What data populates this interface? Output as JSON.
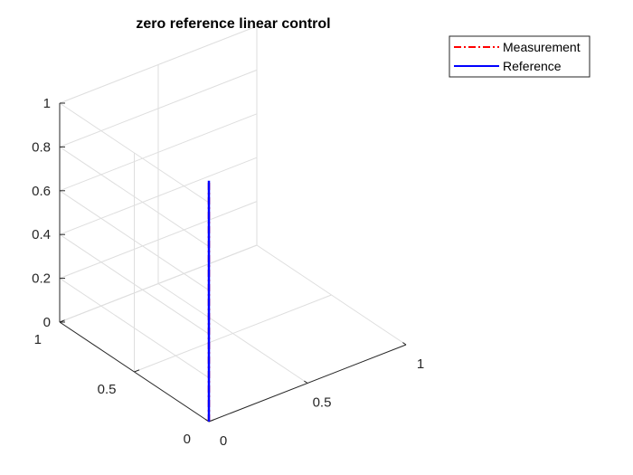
{
  "chart_data": {
    "type": "line",
    "projection": "3d",
    "title": "zero reference linear control",
    "xlabel": "",
    "ylabel": "",
    "zlabel": "",
    "xlim": [
      0,
      1
    ],
    "ylim": [
      0,
      1
    ],
    "zlim": [
      0,
      1
    ],
    "x_ticks": [
      "0",
      "0.5",
      "1"
    ],
    "y_ticks": [
      "0",
      "0.5",
      "1"
    ],
    "z_ticks": [
      "0",
      "0.2",
      "0.4",
      "0.6",
      "0.8",
      "1"
    ],
    "grid": true,
    "legend_position": "top-right",
    "series": [
      {
        "name": "Measurement",
        "color": "#ff0000",
        "style": "dash-dot",
        "x": [
          0,
          0,
          0,
          0,
          0,
          0,
          0,
          0,
          0,
          0,
          0,
          0
        ],
        "y": [
          0,
          0,
          0,
          0,
          0,
          0,
          0,
          0,
          0,
          0,
          0,
          0
        ],
        "z": [
          0,
          0.1,
          0.2,
          0.3,
          0.4,
          0.5,
          0.6,
          0.7,
          0.8,
          0.9,
          1.0,
          1.1
        ]
      },
      {
        "name": "Reference",
        "color": "#0000ff",
        "style": "solid",
        "x": [
          0,
          0,
          0,
          0,
          0,
          0,
          0,
          0,
          0,
          0,
          0,
          0
        ],
        "y": [
          0,
          0,
          0,
          0,
          0,
          0,
          0,
          0,
          0,
          0,
          0,
          0
        ],
        "z": [
          0,
          0.1,
          0.2,
          0.3,
          0.4,
          0.5,
          0.6,
          0.7,
          0.8,
          0.9,
          1.0,
          1.1
        ]
      }
    ]
  }
}
